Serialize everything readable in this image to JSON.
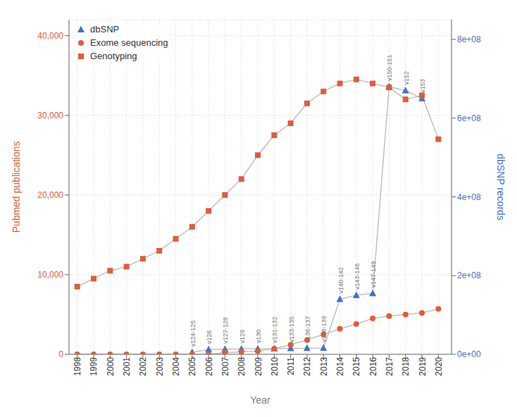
{
  "chart_data": {
    "type": "line",
    "x_label": "Year",
    "y_label": "Pubmed publications",
    "y2_label": "dbSNP records",
    "x": [
      1998,
      1999,
      2000,
      2001,
      2002,
      2003,
      2004,
      2005,
      2006,
      2007,
      2008,
      2009,
      2010,
      2011,
      2012,
      2013,
      2014,
      2015,
      2016,
      2017,
      2018,
      2019,
      2020
    ],
    "xlim": [
      1997.5,
      2020.8
    ],
    "xticks": [
      1998,
      1999,
      2000,
      2001,
      2002,
      2003,
      2004,
      2005,
      2006,
      2007,
      2008,
      2009,
      2010,
      2011,
      2012,
      2013,
      2014,
      2015,
      2016,
      2017,
      2018,
      2019,
      2020
    ],
    "ylim": [
      0,
      42000
    ],
    "yticks": [
      0,
      {
        "value": 10000,
        "label": "10,000"
      },
      {
        "value": 20000,
        "label": "20,000"
      },
      {
        "value": 30000,
        "label": "30,000"
      },
      {
        "value": 40000,
        "label": "40,000"
      }
    ],
    "y2lim": [
      0,
      850000000
    ],
    "y2ticks": [
      {
        "value": 0,
        "label": "0e+00"
      },
      {
        "value": 200000000,
        "label": "2e+08"
      },
      {
        "value": 400000000,
        "label": "4e+08"
      },
      {
        "value": 600000000,
        "label": "6e+08"
      },
      {
        "value": 800000000,
        "label": "8e+08"
      }
    ],
    "grid": true,
    "legend": "upper left",
    "series": [
      {
        "name": "dbSNP",
        "color": "#4472c4",
        "marker": "triangle",
        "axis": "y2",
        "x": [
          2005,
          2006,
          2007,
          2008,
          2009,
          2010,
          2011,
          2012,
          2013,
          2014,
          2015,
          2016,
          2017,
          2018,
          2019
        ],
        "values": [
          5000000,
          12000000,
          13000000,
          13500000,
          14000000,
          14500000,
          15000000,
          15500000,
          16000000,
          140000000,
          150000000,
          155000000,
          680000000,
          670000000,
          650000000
        ]
      },
      {
        "name": "Exome sequencing",
        "color": "#e05c3a",
        "marker": "circle",
        "values": [
          0,
          0,
          0,
          0,
          0,
          0,
          0,
          0,
          0,
          200,
          300,
          400,
          700,
          1200,
          1800,
          2500,
          3200,
          3800,
          4500,
          4800,
          5000,
          5200,
          5700
        ]
      },
      {
        "name": "Genotyping",
        "color": "#e05c3a",
        "marker": "square",
        "values": [
          8500,
          9500,
          10500,
          11000,
          12000,
          13000,
          14500,
          16000,
          18000,
          20000,
          22000,
          25000,
          27500,
          29000,
          31500,
          33000,
          34000,
          34500,
          34000,
          33500,
          32000,
          32500,
          27000
        ]
      }
    ],
    "annotations": [
      {
        "text": "v124-125",
        "x": 2005,
        "y": 5000000,
        "axis": "y2"
      },
      {
        "text": "v126",
        "x": 2006,
        "y": 12000000,
        "axis": "y2"
      },
      {
        "text": "v127-128",
        "x": 2007,
        "y": 13000000,
        "axis": "y2"
      },
      {
        "text": "v129",
        "x": 2008,
        "y": 13500000,
        "axis": "y2"
      },
      {
        "text": "v130",
        "x": 2009,
        "y": 14000000,
        "axis": "y2"
      },
      {
        "text": "v131-132",
        "x": 2010,
        "y": 14500000,
        "axis": "y2"
      },
      {
        "text": "v133-135",
        "x": 2011,
        "y": 15000000,
        "axis": "y2"
      },
      {
        "text": "v136-137",
        "x": 2012,
        "y": 15500000,
        "axis": "y2"
      },
      {
        "text": "v138-139",
        "x": 2013,
        "y": 16000000,
        "axis": "y2"
      },
      {
        "text": "v140-142",
        "x": 2014,
        "y": 140000000,
        "axis": "y2"
      },
      {
        "text": "v143-146",
        "x": 2015,
        "y": 150000000,
        "axis": "y2"
      },
      {
        "text": "v147-149",
        "x": 2016,
        "y": 155000000,
        "axis": "y2"
      },
      {
        "text": "v150-151",
        "x": 2017,
        "y": 680000000,
        "axis": "y2"
      },
      {
        "text": "v152",
        "x": 2018,
        "y": 670000000,
        "axis": "y2"
      },
      {
        "text": "v153",
        "x": 2019,
        "y": 650000000,
        "axis": "y2"
      }
    ]
  }
}
